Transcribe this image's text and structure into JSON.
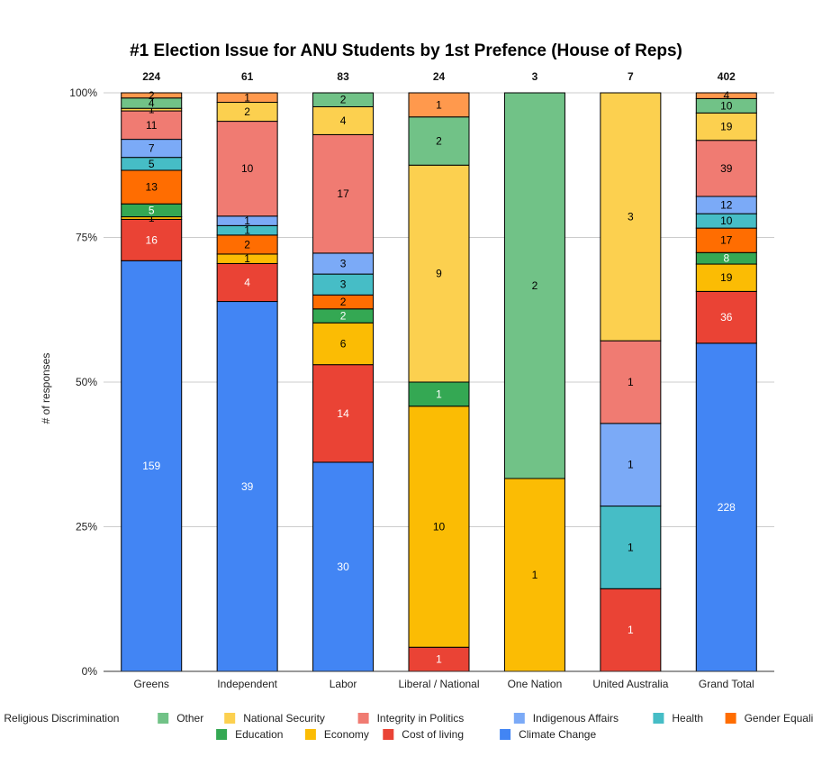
{
  "chart_data": {
    "type": "bar",
    "stacked": "percent",
    "title": "#1 Election Issue for ANU Students by 1st Prefence (House of Reps)",
    "ylabel": "# of responses",
    "xlabel": "",
    "ylim": [
      0,
      1
    ],
    "yticks": [
      "0%",
      "25%",
      "50%",
      "75%",
      "100%"
    ],
    "grid": true,
    "legend_position": "bottom",
    "categories": [
      "Greens",
      "Independent",
      "Labor",
      "Liberal / National",
      "One Nation",
      "United Australia",
      "Grand Total"
    ],
    "totals": [
      "224",
      "61",
      "83",
      "24",
      "3",
      "7",
      "402"
    ],
    "series": [
      {
        "name": "Climate Change",
        "color": "#4285f4",
        "label_color": "#ffffff",
        "values": [
          159,
          39,
          30,
          0,
          0,
          0,
          228
        ]
      },
      {
        "name": "Cost of living",
        "color": "#ea4335",
        "label_color": "#ffffff",
        "values": [
          16,
          4,
          14,
          1,
          0,
          1,
          36
        ]
      },
      {
        "name": "Economy",
        "color": "#fbbc04",
        "label_color": "#000000",
        "values": [
          1,
          1,
          6,
          10,
          1,
          0,
          19
        ]
      },
      {
        "name": "Education",
        "color": "#34a853",
        "label_color": "#ffffff",
        "values": [
          5,
          0,
          2,
          1,
          0,
          0,
          8
        ]
      },
      {
        "name": "Gender Equality",
        "color": "#ff6d01",
        "label_color": "#000000",
        "values": [
          13,
          2,
          2,
          0,
          0,
          0,
          17
        ]
      },
      {
        "name": "Health",
        "color": "#46bdc6",
        "label_color": "#000000",
        "values": [
          5,
          1,
          3,
          0,
          0,
          1,
          10
        ]
      },
      {
        "name": "Indigenous Affairs",
        "color": "#7baaf7",
        "label_color": "#000000",
        "values": [
          7,
          1,
          3,
          0,
          0,
          1,
          12
        ]
      },
      {
        "name": "Integrity in Politics",
        "color": "#f07b72",
        "label_color": "#000000",
        "values": [
          11,
          10,
          17,
          0,
          0,
          1,
          39
        ]
      },
      {
        "name": "National Security",
        "color": "#fcd04f",
        "label_color": "#000000",
        "values": [
          1,
          2,
          4,
          9,
          0,
          3,
          19
        ]
      },
      {
        "name": "Other",
        "color": "#71c287",
        "label_color": "#000000",
        "values": [
          4,
          0,
          2,
          2,
          2,
          0,
          10
        ]
      },
      {
        "name": "Religious Discrimination",
        "color": "#ff994d",
        "label_color": "#000000",
        "values": [
          2,
          1,
          0,
          1,
          0,
          0,
          4
        ]
      }
    ],
    "legend_order": [
      [
        "Religious Discrimination",
        "Other",
        "National Security",
        "Integrity in Politics",
        "Indigenous Affairs",
        "Health",
        "Gender Equality"
      ],
      [
        "Education",
        "Economy",
        "Cost of living",
        "Climate Change"
      ]
    ]
  }
}
